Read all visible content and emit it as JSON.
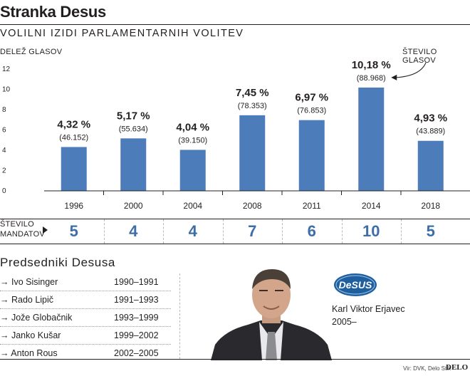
{
  "header": {
    "title": "Stranka Desus",
    "subtitle": "VOLILNI IZIDI PARLAMENTARNIH VOLITEV"
  },
  "chart_data": {
    "type": "bar",
    "title": "VOLILNI IZIDI PARLAMENTARNIH VOLITEV",
    "ylabel": "DELEŽ GLASOV",
    "annotation": "ŠTEVILO GLASOV",
    "ylim": [
      0,
      12
    ],
    "yticks": [
      0,
      2,
      4,
      6,
      8,
      10,
      12
    ],
    "grid": false,
    "bar_color": "#4d7cba",
    "categories": [
      "1996",
      "2000",
      "2004",
      "2008",
      "2011",
      "2014",
      "2018"
    ],
    "values": [
      4.32,
      5.17,
      4.04,
      7.45,
      6.97,
      10.18,
      4.93
    ],
    "value_labels": [
      "4,32 %",
      "5,17 %",
      "4,04 %",
      "7,45 %",
      "6,97 %",
      "10,18 %",
      "4,93 %"
    ],
    "votes": [
      "(46.152)",
      "(55.634)",
      "(39.150)",
      "(78.353)",
      "(76.853)",
      "(88.968)",
      "(43.889)"
    ]
  },
  "seats": {
    "label_line1": "ŠTEVILO",
    "label_line2": "MANDATOV",
    "values": [
      "5",
      "4",
      "4",
      "7",
      "6",
      "10",
      "5"
    ],
    "color": "#3d6ea8"
  },
  "presidents": {
    "title": "Predsedniki Desusa",
    "items": [
      {
        "name": "→ Ivo Sisinger",
        "years": "1990–1991"
      },
      {
        "name": "→ Rado Lipič",
        "years": "1991–1993"
      },
      {
        "name": "→ Jože Globačnik",
        "years": "1993–1999"
      },
      {
        "name": "→ Janko Kušar",
        "years": "1999–2002"
      },
      {
        "name": "→ Anton Rous",
        "years": "2002–2005"
      }
    ],
    "current": {
      "name": "Karl Viktor Erjavec",
      "years": "2005–"
    },
    "logo_text": "DeSUS"
  },
  "footer": {
    "source": "Vir: DVK, Delo Stik",
    "brand": "DELO"
  }
}
